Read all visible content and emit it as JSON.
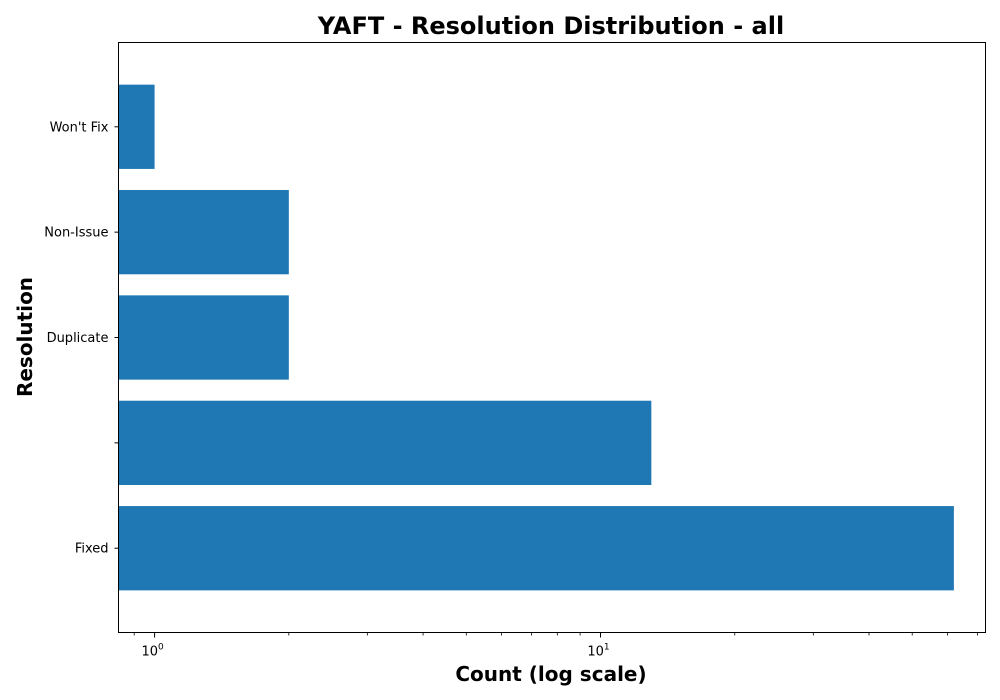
{
  "chart_data": {
    "type": "bar",
    "orientation": "horizontal",
    "title": "YAFT - Resolution Distribution - all",
    "xlabel": "Count (log scale)",
    "ylabel": "Resolution",
    "x_scale": "log",
    "xlim": [
      0.83,
      73
    ],
    "categories": [
      "Fixed",
      "",
      "Duplicate",
      "Non-Issue",
      "Won't Fix"
    ],
    "values": [
      62,
      13,
      2,
      2,
      1
    ],
    "x_ticks": [
      {
        "value": 1,
        "base": "10",
        "exp": "0"
      },
      {
        "value": 10,
        "base": "10",
        "exp": "1"
      }
    ],
    "grid": false,
    "colors": {
      "bar": "#1f77b4",
      "axes": "#000000"
    }
  }
}
